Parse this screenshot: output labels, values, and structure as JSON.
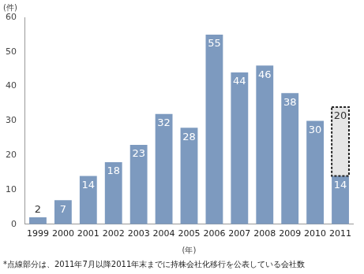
{
  "chart_data": {
    "type": "bar",
    "ylabel": "(件)",
    "xlabel": "(年)",
    "annotation": "*点線部分は、2011年7月以降2011年末までに持株会社化移行を公表している会社数",
    "categories": [
      "1999",
      "2000",
      "2001",
      "2002",
      "2003",
      "2004",
      "2005",
      "2006",
      "2007",
      "2008",
      "2009",
      "2010",
      "2011"
    ],
    "series": [
      {
        "color": "#7d9abf",
        "values": [
          2,
          7,
          14,
          18,
          23,
          32,
          28,
          55,
          44,
          46,
          38,
          30,
          14
        ]
      },
      {
        "color": "#e6e6e6",
        "line_style": "dashed",
        "values": [
          null,
          null,
          null,
          null,
          null,
          null,
          null,
          null,
          null,
          null,
          null,
          null,
          20
        ]
      }
    ],
    "stacked": true,
    "data_labels": true,
    "grid": false,
    "ylim": [
      0,
      60
    ],
    "yticks": [
      0,
      10,
      20,
      30,
      40,
      50,
      60
    ]
  }
}
